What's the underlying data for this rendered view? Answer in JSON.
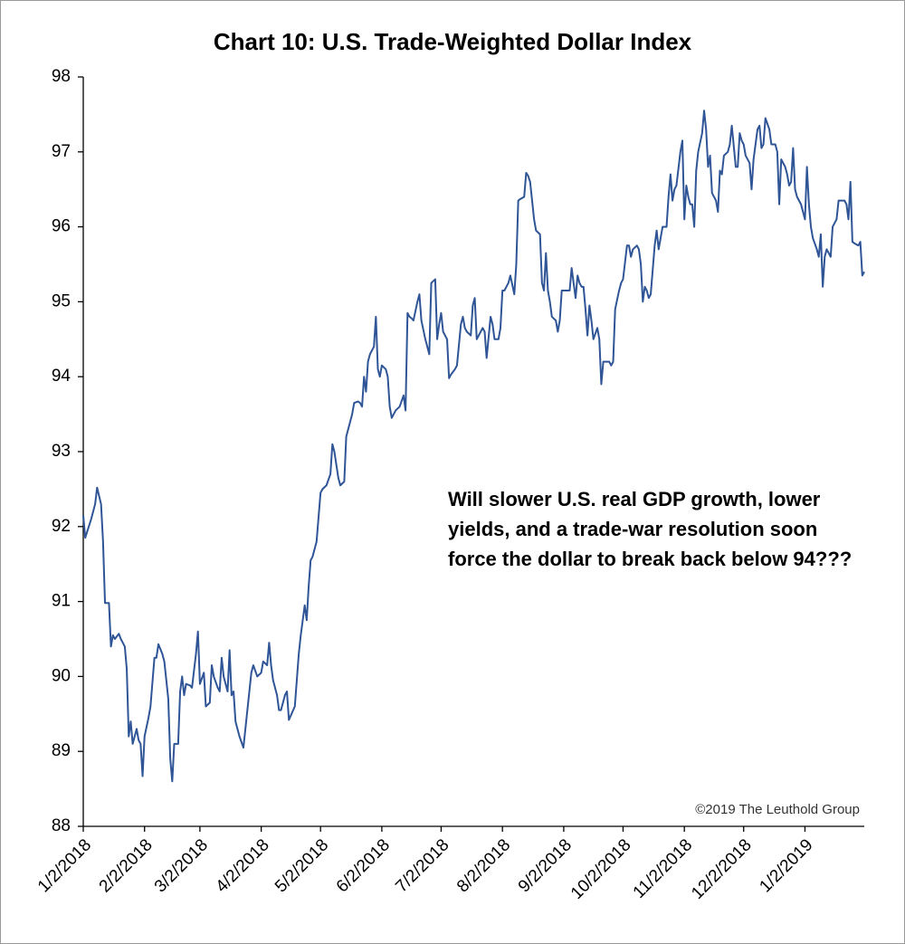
{
  "chart_data": {
    "type": "line",
    "title": "Chart 10: U.S. Trade-Weighted Dollar Index",
    "annotation": [
      "Will slower U.S. real GDP growth, lower",
      "yields, and a trade-war resolution soon",
      "force the dollar to break back below 94???"
    ],
    "source": "©2019 The Leuthold Group",
    "color": "#2f5597",
    "annotation_color": "#ff0000",
    "ylim": [
      88,
      98
    ],
    "yticks": [
      88,
      89,
      90,
      91,
      92,
      93,
      94,
      95,
      96,
      97,
      98
    ],
    "xlim": [
      "2018-01-02",
      "2019-02-01"
    ],
    "xticks": [
      {
        "value": "2018-01-02",
        "label": "1/2/2018"
      },
      {
        "value": "2018-02-02",
        "label": "2/2/2018"
      },
      {
        "value": "2018-03-02",
        "label": "3/2/2018"
      },
      {
        "value": "2018-04-02",
        "label": "4/2/2018"
      },
      {
        "value": "2018-05-02",
        "label": "5/2/2018"
      },
      {
        "value": "2018-06-02",
        "label": "6/2/2018"
      },
      {
        "value": "2018-07-02",
        "label": "7/2/2018"
      },
      {
        "value": "2018-08-02",
        "label": "8/2/2018"
      },
      {
        "value": "2018-09-02",
        "label": "9/2/2018"
      },
      {
        "value": "2018-10-02",
        "label": "10/2/2018"
      },
      {
        "value": "2018-11-02",
        "label": "11/2/2018"
      },
      {
        "value": "2018-12-02",
        "label": "12/2/2018"
      },
      {
        "value": "2019-01-02",
        "label": "1/2/2019"
      }
    ],
    "x": [
      "2018-01-02",
      "2018-01-03",
      "2018-01-06",
      "2018-01-08",
      "2018-01-09",
      "2018-01-11",
      "2018-01-12",
      "2018-01-13",
      "2018-01-15",
      "2018-01-16",
      "2018-01-17",
      "2018-01-18",
      "2018-01-20",
      "2018-01-21",
      "2018-01-23",
      "2018-01-24",
      "2018-01-25",
      "2018-01-26",
      "2018-01-27",
      "2018-01-29",
      "2018-01-30",
      "2018-01-31",
      "2018-02-01",
      "2018-02-02",
      "2018-02-04",
      "2018-02-05",
      "2018-02-07",
      "2018-02-08",
      "2018-02-09",
      "2018-02-11",
      "2018-02-12",
      "2018-02-14",
      "2018-02-15",
      "2018-02-16",
      "2018-02-17",
      "2018-02-19",
      "2018-02-20",
      "2018-02-21",
      "2018-02-22",
      "2018-02-23",
      "2018-02-25",
      "2018-02-26",
      "2018-02-28",
      "2018-03-01",
      "2018-03-02",
      "2018-03-04",
      "2018-03-05",
      "2018-03-07",
      "2018-03-08",
      "2018-03-09",
      "2018-03-11",
      "2018-03-12",
      "2018-03-13",
      "2018-03-14",
      "2018-03-16",
      "2018-03-17",
      "2018-03-18",
      "2018-03-19",
      "2018-03-20",
      "2018-03-22",
      "2018-03-24",
      "2018-03-26",
      "2018-03-28",
      "2018-03-29",
      "2018-03-31",
      "2018-04-02",
      "2018-04-03",
      "2018-04-05",
      "2018-04-06",
      "2018-04-07",
      "2018-04-08",
      "2018-04-10",
      "2018-04-11",
      "2018-04-12",
      "2018-04-14",
      "2018-04-15",
      "2018-04-16",
      "2018-04-19",
      "2018-04-21",
      "2018-04-22",
      "2018-04-24",
      "2018-04-25",
      "2018-04-26",
      "2018-04-27",
      "2018-04-28",
      "2018-04-30",
      "2018-05-02",
      "2018-05-03",
      "2018-05-05",
      "2018-05-07",
      "2018-05-08",
      "2018-05-09",
      "2018-05-11",
      "2018-05-12",
      "2018-05-14",
      "2018-05-15",
      "2018-05-17",
      "2018-05-18",
      "2018-05-19",
      "2018-05-21",
      "2018-05-22",
      "2018-05-23",
      "2018-05-24",
      "2018-05-25",
      "2018-05-26",
      "2018-05-27",
      "2018-05-29",
      "2018-05-30",
      "2018-05-31",
      "2018-06-01",
      "2018-06-02",
      "2018-06-04",
      "2018-06-05",
      "2018-06-06",
      "2018-06-07",
      "2018-06-09",
      "2018-06-11",
      "2018-06-13",
      "2018-06-14",
      "2018-06-15",
      "2018-06-16",
      "2018-06-17",
      "2018-06-18",
      "2018-06-20",
      "2018-06-21",
      "2018-06-22",
      "2018-06-24",
      "2018-06-25",
      "2018-06-26",
      "2018-06-27",
      "2018-06-29",
      "2018-06-30",
      "2018-07-01",
      "2018-07-02",
      "2018-07-03",
      "2018-07-05",
      "2018-07-06",
      "2018-07-07",
      "2018-07-09",
      "2018-07-10",
      "2018-07-12",
      "2018-07-13",
      "2018-07-14",
      "2018-07-15",
      "2018-07-17",
      "2018-07-18",
      "2018-07-19",
      "2018-07-20",
      "2018-07-22",
      "2018-07-23",
      "2018-07-24",
      "2018-07-25",
      "2018-07-27",
      "2018-07-28",
      "2018-07-29",
      "2018-07-31",
      "2018-08-01",
      "2018-08-02",
      "2018-08-03",
      "2018-08-05",
      "2018-08-06",
      "2018-08-08",
      "2018-08-09",
      "2018-08-10",
      "2018-08-11",
      "2018-08-13",
      "2018-08-14",
      "2018-08-15",
      "2018-08-16",
      "2018-08-18",
      "2018-08-19",
      "2018-08-21",
      "2018-08-22",
      "2018-08-23",
      "2018-08-24",
      "2018-08-25",
      "2018-08-26",
      "2018-08-27",
      "2018-08-29",
      "2018-08-30",
      "2018-08-31",
      "2018-09-01",
      "2018-09-03",
      "2018-09-05",
      "2018-09-06",
      "2018-09-07",
      "2018-09-08",
      "2018-09-09",
      "2018-09-10",
      "2018-09-11",
      "2018-09-12",
      "2018-09-13",
      "2018-09-14",
      "2018-09-15",
      "2018-09-16",
      "2018-09-17",
      "2018-09-19",
      "2018-09-20",
      "2018-09-21",
      "2018-09-22",
      "2018-09-23",
      "2018-09-25",
      "2018-09-26",
      "2018-09-27",
      "2018-09-28",
      "2018-09-30",
      "2018-10-01",
      "2018-10-02",
      "2018-10-04",
      "2018-10-05",
      "2018-10-06",
      "2018-10-07",
      "2018-10-09",
      "2018-10-10",
      "2018-10-11",
      "2018-10-12",
      "2018-10-13",
      "2018-10-14",
      "2018-10-15",
      "2018-10-16",
      "2018-10-18",
      "2018-10-19",
      "2018-10-20",
      "2018-10-21",
      "2018-10-22",
      "2018-10-24",
      "2018-10-25",
      "2018-10-26",
      "2018-10-27",
      "2018-10-28",
      "2018-10-29",
      "2018-10-31",
      "2018-11-01",
      "2018-11-02",
      "2018-11-03",
      "2018-11-04",
      "2018-11-05",
      "2018-11-06",
      "2018-11-07",
      "2018-11-08",
      "2018-11-09",
      "2018-11-11",
      "2018-11-12",
      "2018-11-13",
      "2018-11-14",
      "2018-11-15",
      "2018-11-16",
      "2018-11-18",
      "2018-11-19",
      "2018-11-20",
      "2018-11-21",
      "2018-11-22",
      "2018-11-24",
      "2018-11-25",
      "2018-11-26",
      "2018-11-28",
      "2018-11-29",
      "2018-11-30",
      "2018-12-01",
      "2018-12-02",
      "2018-12-03",
      "2018-12-05",
      "2018-12-06",
      "2018-12-07",
      "2018-12-09",
      "2018-12-10",
      "2018-12-11",
      "2018-12-12",
      "2018-12-13",
      "2018-12-15",
      "2018-12-16",
      "2018-12-18",
      "2018-12-19",
      "2018-12-20",
      "2018-12-21",
      "2018-12-23",
      "2018-12-24",
      "2018-12-25",
      "2018-12-26",
      "2018-12-27",
      "2018-12-28",
      "2018-12-29",
      "2018-12-31",
      "2019-01-01",
      "2019-01-02",
      "2019-01-03",
      "2019-01-04",
      "2019-01-05",
      "2019-01-06",
      "2019-01-08",
      "2019-01-09",
      "2019-01-10",
      "2019-01-11",
      "2019-01-12",
      "2019-01-13",
      "2019-01-14",
      "2019-01-15",
      "2019-01-16",
      "2019-01-17",
      "2019-01-18",
      "2019-01-19",
      "2019-01-20",
      "2019-01-22",
      "2019-01-23",
      "2019-01-24",
      "2019-01-25",
      "2019-01-26",
      "2019-01-27",
      "2019-01-29",
      "2019-01-30",
      "2019-01-31",
      "2019-02-01"
    ],
    "values": [
      92.15,
      91.85,
      92.1,
      92.3,
      92.52,
      92.3,
      91.8,
      90.98,
      90.98,
      90.4,
      90.55,
      90.5,
      90.57,
      90.5,
      90.4,
      90.1,
      89.2,
      89.4,
      89.1,
      89.3,
      89.15,
      89.1,
      88.67,
      89.2,
      89.45,
      89.6,
      90.25,
      90.25,
      90.43,
      90.3,
      90.2,
      89.7,
      88.9,
      88.6,
      89.1,
      89.1,
      89.8,
      90.0,
      89.75,
      89.9,
      89.88,
      89.85,
      90.3,
      90.6,
      89.9,
      90.05,
      89.6,
      89.65,
      90.15,
      90.0,
      89.85,
      89.8,
      90.25,
      90.0,
      89.8,
      90.35,
      89.75,
      89.8,
      89.4,
      89.2,
      89.05,
      89.55,
      90.05,
      90.15,
      90.0,
      90.05,
      90.2,
      90.15,
      90.45,
      90.15,
      89.95,
      89.75,
      89.55,
      89.55,
      89.75,
      89.8,
      89.42,
      89.6,
      90.3,
      90.55,
      90.95,
      90.75,
      91.2,
      91.55,
      91.6,
      91.8,
      92.45,
      92.5,
      92.55,
      92.7,
      93.1,
      93.0,
      92.65,
      92.55,
      92.6,
      93.2,
      93.4,
      93.5,
      93.65,
      93.67,
      93.65,
      93.6,
      94.0,
      93.8,
      94.2,
      94.3,
      94.4,
      94.8,
      94.1,
      94.0,
      94.15,
      94.1,
      94.0,
      93.6,
      93.45,
      93.55,
      93.6,
      93.75,
      93.55,
      94.85,
      94.8,
      94.78,
      94.75,
      95.0,
      95.1,
      94.75,
      94.5,
      94.4,
      94.3,
      95.25,
      95.3,
      94.5,
      94.7,
      94.85,
      94.6,
      94.5,
      93.98,
      94.03,
      94.1,
      94.15,
      94.7,
      94.8,
      94.65,
      94.6,
      94.55,
      94.95,
      95.05,
      94.5,
      94.6,
      94.65,
      94.6,
      94.25,
      94.8,
      94.7,
      94.5,
      94.5,
      94.65,
      95.15,
      95.15,
      95.25,
      95.35,
      95.1,
      95.5,
      96.35,
      96.37,
      96.4,
      96.72,
      96.68,
      96.6,
      96.1,
      95.95,
      95.9,
      95.25,
      95.15,
      95.65,
      95.15,
      95.0,
      94.8,
      94.75,
      94.6,
      94.75,
      95.15,
      95.15,
      95.15,
      95.45,
      95.25,
      95.05,
      95.35,
      95.25,
      95.2,
      95.2,
      94.9,
      94.55,
      94.95,
      94.75,
      94.5,
      94.65,
      94.5,
      93.9,
      94.2,
      94.2,
      94.2,
      94.15,
      94.2,
      94.9,
      95.15,
      95.25,
      95.3,
      95.75,
      95.75,
      95.6,
      95.7,
      95.75,
      95.7,
      95.5,
      95.0,
      95.2,
      95.15,
      95.05,
      95.1,
      95.75,
      95.95,
      95.7,
      95.85,
      96.0,
      96.0,
      96.4,
      96.7,
      96.35,
      96.5,
      96.55,
      97.0,
      97.15,
      96.1,
      96.55,
      96.4,
      96.3,
      96.3,
      96.0,
      96.75,
      97.0,
      97.25,
      97.55,
      97.3,
      96.8,
      96.95,
      96.45,
      96.35,
      96.2,
      96.75,
      96.7,
      96.95,
      97.0,
      97.1,
      97.35,
      96.8,
      96.8,
      97.25,
      97.15,
      97.1,
      96.95,
      96.85,
      96.5,
      96.9,
      97.3,
      97.35,
      97.05,
      97.1,
      97.45,
      97.3,
      97.1,
      97.1,
      97.0,
      96.3,
      96.9,
      96.8,
      96.7,
      96.55,
      96.6,
      97.05,
      96.5,
      96.4,
      96.3,
      96.2,
      96.1,
      96.8,
      96.3,
      96.0,
      95.85,
      95.7,
      95.6,
      95.9,
      95.2,
      95.6,
      95.7,
      95.65,
      95.6,
      96.0,
      96.05,
      96.1,
      96.35,
      96.35,
      96.35,
      96.3,
      96.1,
      96.6,
      95.8,
      95.78,
      95.75,
      95.8,
      95.35,
      95.4
    ]
  }
}
